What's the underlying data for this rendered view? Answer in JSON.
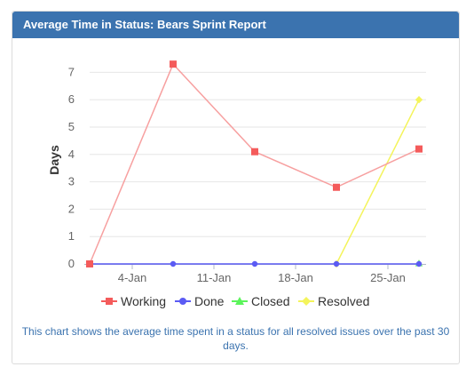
{
  "panel": {
    "title": "Average Time in Status: Bears Sprint Report",
    "footnote": "This chart shows the average time spent in a status for all resolved issues over the past 30 days."
  },
  "chart_data": {
    "type": "line",
    "title": "",
    "ylabel": "Days",
    "xlabel": "",
    "x": [
      "1-Jan",
      "7-Jan",
      "14-Jan",
      "21-Jan",
      "28-Jan"
    ],
    "xticks": [
      "4-Jan",
      "11-Jan",
      "18-Jan",
      "25-Jan"
    ],
    "yticks": [
      "0",
      "1",
      "2",
      "3",
      "4",
      "5",
      "6",
      "7"
    ],
    "ylim": [
      0,
      7.6
    ],
    "grid": true,
    "legend_position": "bottom",
    "series": [
      {
        "name": "Working",
        "color": "#f45b5b",
        "line_color": "#f7a0a0",
        "marker": "square",
        "values": [
          0,
          7.3,
          4.1,
          2.8,
          4.2
        ]
      },
      {
        "name": "Done",
        "color": "#5b5bf4",
        "line_color": "#5b5bf4",
        "marker": "circle",
        "values": [
          0,
          0,
          0,
          0,
          0
        ]
      },
      {
        "name": "Closed",
        "color": "#5bf45b",
        "line_color": "#5bf45b",
        "marker": "triangle",
        "values": [
          null,
          null,
          null,
          null,
          0.02
        ]
      },
      {
        "name": "Resolved",
        "color": "#f4f45b",
        "line_color": "#f4f45b",
        "marker": "diamond",
        "values": [
          null,
          null,
          null,
          0,
          6.0
        ]
      }
    ]
  }
}
